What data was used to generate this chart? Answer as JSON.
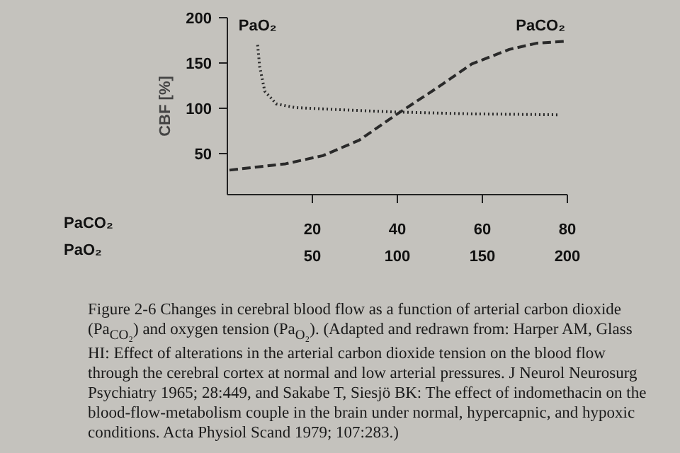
{
  "chart_data": {
    "type": "line",
    "ylabel": "CBF [%]",
    "xlabel": "PaCO₂",
    "x2label": "PaO₂",
    "xlim": [
      0,
      80
    ],
    "xticks": [
      20,
      40,
      60,
      80
    ],
    "x2lim": [
      0,
      200
    ],
    "x2ticks": [
      50,
      100,
      150,
      200
    ],
    "ylim": [
      5,
      200
    ],
    "yticks": [
      50,
      100,
      150,
      200
    ],
    "grid": false,
    "marker": "none",
    "series": [
      {
        "name": "PaO₂",
        "axis": "x2",
        "color": "#2a2a2a",
        "line_style": "dotted",
        "x": [
          17.8,
          19,
          22,
          28.8,
          39.7,
          61.7,
          100,
          144,
          194.5
        ],
        "values": [
          170,
          146,
          119,
          105,
          101,
          99,
          96,
          94,
          93
        ]
      },
      {
        "name": "PaCO₂",
        "color": "#2a2a2a",
        "line_style": "dashed",
        "x": [
          0.5,
          13.7,
          22.5,
          31,
          40,
          48.8,
          57.5,
          66.3,
          72.9,
          79.5
        ],
        "values": [
          32,
          39,
          48,
          65,
          94,
          121,
          149,
          165,
          172,
          174
        ]
      }
    ],
    "annotations": [
      "Figure 2-6 Changes in cerebral blood flow as a function of arterial carbon dioxide (Pa$_{CO₂}$) and oxygen tension (Pa$_{O₂}$). (Adapted and redrawn from: Harper AM, Glass HI: Effect of alterations in the arterial carbon dioxide tension on the blood flow through the cerebral cortex at normal and low arterial pressures. J Neurol Neurosurg Psychiatry 1965; 28:449, and Sakabe T, Siesjö BK: The effect of indomethacin on the blood-flow-metabolism couple in the brain under normal, hypercapnic, and hypoxic conditions. Acta Physiol Scand 1979; 107:283.)"
    ]
  }
}
